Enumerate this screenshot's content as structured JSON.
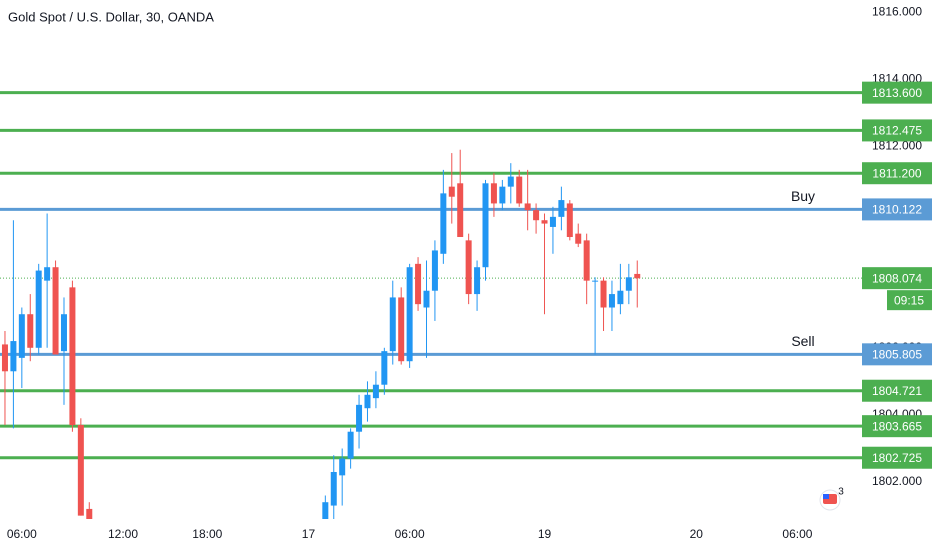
{
  "chart_data": {
    "type": "candlestick",
    "title": "Gold Spot / U.S. Dollar, 30, OANDA",
    "x": [
      0,
      1,
      2,
      3,
      4,
      5,
      6,
      7,
      8,
      9,
      10,
      38,
      39,
      40,
      41,
      42,
      43,
      44,
      45,
      46,
      47,
      48,
      49,
      50,
      51,
      52,
      53,
      54,
      55,
      56,
      57,
      58,
      59,
      60,
      61,
      62,
      63,
      64,
      65,
      66,
      67,
      68,
      69,
      70,
      71,
      72,
      73,
      74,
      75
    ],
    "open": [
      1806.1,
      1805.3,
      1805.7,
      1807.0,
      1806.0,
      1808.0,
      1808.4,
      1805.9,
      1807.8,
      1803.7,
      1801.2,
      1800.9,
      1801.3,
      1802.2,
      1802.7,
      1803.5,
      1804.2,
      1804.5,
      1804.9,
      1805.9,
      1807.5,
      1805.6,
      1808.5,
      1807.2,
      1807.7,
      1808.8,
      1810.8,
      1810.9,
      1809.2,
      1807.6,
      1808.4,
      1810.9,
      1810.3,
      1810.8,
      1811.1,
      1810.3,
      1810.1,
      1809.8,
      1809.6,
      1809.9,
      1810.3,
      1809.4,
      1809.2,
      1808.0,
      1808.0,
      1807.2,
      1807.3,
      1807.7,
      1808.2
    ],
    "high": [
      1806.5,
      1809.8,
      1807.2,
      1807.6,
      1808.5,
      1810.0,
      1808.6,
      1807.5,
      1808.0,
      1803.9,
      1801.4,
      1801.6,
      1802.8,
      1803.0,
      1803.6,
      1804.6,
      1805.0,
      1805.3,
      1806.0,
      1808.0,
      1807.8,
      1808.5,
      1808.7,
      1808.6,
      1809.2,
      1811.3,
      1811.8,
      1811.9,
      1809.4,
      1808.6,
      1811.0,
      1811.2,
      1811.0,
      1811.5,
      1811.3,
      1811.3,
      1810.3,
      1810.0,
      1810.2,
      1810.8,
      1810.4,
      1809.7,
      1809.4,
      1808.1,
      1808.1,
      1808.0,
      1808.5,
      1808.5,
      1808.6
    ],
    "low": [
      1803.7,
      1803.6,
      1804.8,
      1805.6,
      1805.8,
      1806.0,
      1805.8,
      1804.3,
      1803.5,
      1801.0,
      1800.9,
      1800.9,
      1800.9,
      1801.3,
      1802.4,
      1803.0,
      1803.8,
      1804.2,
      1804.6,
      1805.5,
      1805.5,
      1805.4,
      1807.1,
      1805.7,
      1806.8,
      1808.5,
      1809.7,
      1809.3,
      1807.3,
      1807.1,
      1808.0,
      1809.9,
      1810.1,
      1810.3,
      1810.2,
      1809.5,
      1809.4,
      1807.0,
      1808.8,
      1809.5,
      1809.2,
      1809.0,
      1807.3,
      1805.8,
      1806.5,
      1806.5,
      1807.0,
      1807.3,
      1807.2
    ],
    "close": [
      1805.3,
      1806.2,
      1807.0,
      1806.0,
      1808.3,
      1808.4,
      1805.8,
      1807.0,
      1803.7,
      1801.0,
      1800.9,
      1801.4,
      1802.3,
      1802.7,
      1803.5,
      1804.3,
      1804.6,
      1804.9,
      1805.9,
      1807.5,
      1805.6,
      1808.4,
      1807.3,
      1807.7,
      1808.9,
      1810.6,
      1810.5,
      1809.3,
      1807.6,
      1808.4,
      1810.9,
      1810.3,
      1810.8,
      1811.1,
      1810.3,
      1810.1,
      1809.8,
      1809.7,
      1809.9,
      1810.4,
      1809.3,
      1809.1,
      1808.0,
      1808.0,
      1807.2,
      1807.6,
      1807.7,
      1808.1,
      1808.07
    ],
    "up_color": "#2196f3",
    "down_color": "#ef5350",
    "xlim": [
      -0.59,
      101.66
    ],
    "xticks": [
      {
        "value": 2,
        "label": "06:00"
      },
      {
        "value": 14,
        "label": "12:00"
      },
      {
        "value": 24,
        "label": "18:00"
      },
      {
        "value": 36,
        "label": "17"
      },
      {
        "value": 48,
        "label": "06:00"
      },
      {
        "value": 64,
        "label": "19"
      },
      {
        "value": 82,
        "label": "20"
      },
      {
        "value": 94,
        "label": "06:00"
      }
    ],
    "ylim": [
      1800.87,
      1816.36
    ],
    "yticks": [
      {
        "value": 1802,
        "label": "1802.000"
      },
      {
        "value": 1804,
        "label": "1804.000"
      },
      {
        "value": 1806,
        "label": "1806.000"
      },
      {
        "value": 1808,
        "label": "1808.000"
      },
      {
        "value": 1810,
        "label": "1810.000"
      },
      {
        "value": 1812,
        "label": "1812.000"
      },
      {
        "value": 1814,
        "label": "1814.000"
      },
      {
        "value": 1816,
        "label": "1816.000"
      }
    ],
    "levels": [
      {
        "value": 1813.6,
        "label": "1813.600",
        "color": "#4caf50"
      },
      {
        "value": 1812.475,
        "label": "1812.475",
        "color": "#4caf50"
      },
      {
        "value": 1811.2,
        "label": "1811.200",
        "color": "#4caf50"
      },
      {
        "value": 1810.122,
        "label": "1810.122",
        "color": "#5b9bd5",
        "name": "Buy"
      },
      {
        "value": 1805.805,
        "label": "1805.805",
        "color": "#5b9bd5",
        "name": "Sell"
      },
      {
        "value": 1804.721,
        "label": "1804.721",
        "color": "#4caf50"
      },
      {
        "value": 1803.665,
        "label": "1803.665",
        "color": "#4caf50"
      },
      {
        "value": 1802.725,
        "label": "1802.725",
        "color": "#4caf50"
      }
    ],
    "last_price": {
      "value": 1808.074,
      "label": "1808.074",
      "color": "#4caf50"
    },
    "countdown": "09:15",
    "notification_count": 3
  }
}
